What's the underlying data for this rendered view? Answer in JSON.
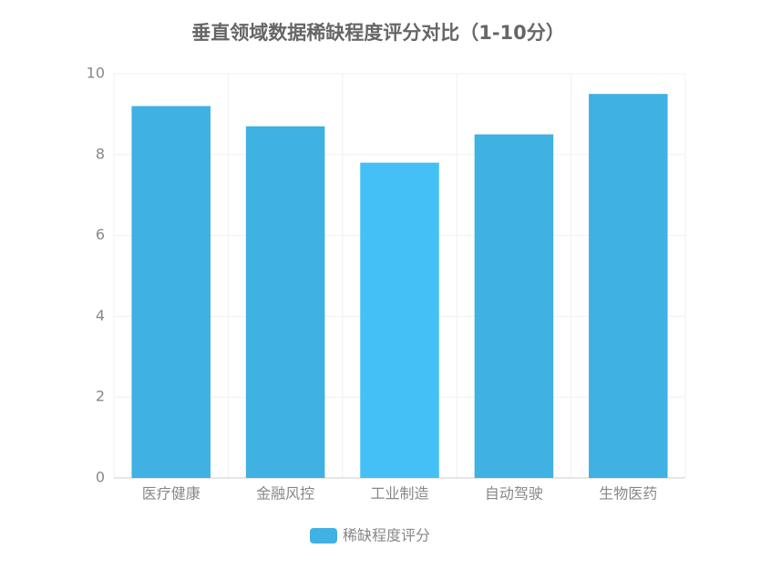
{
  "chart_data": {
    "type": "bar",
    "title": "垂直领域数据稀缺程度评分对比（1-10分）",
    "categories": [
      "医疗健康",
      "金融风控",
      "工业制造",
      "自动驾驶",
      "生物医药"
    ],
    "series": [
      {
        "name": "稀缺程度评分",
        "color": "#3fb1e3",
        "colors": [
          "#3fb1e3",
          "#3fb1e3",
          "#45c0f7",
          "#3fb1e3",
          "#3fb1e3"
        ],
        "values": [
          9.2,
          8.7,
          7.8,
          8.5,
          9.5
        ]
      }
    ],
    "ylim": [
      0,
      10
    ],
    "yticks": [
      0,
      2,
      4,
      6,
      8,
      10
    ],
    "grid": true,
    "legend": "bottom"
  }
}
